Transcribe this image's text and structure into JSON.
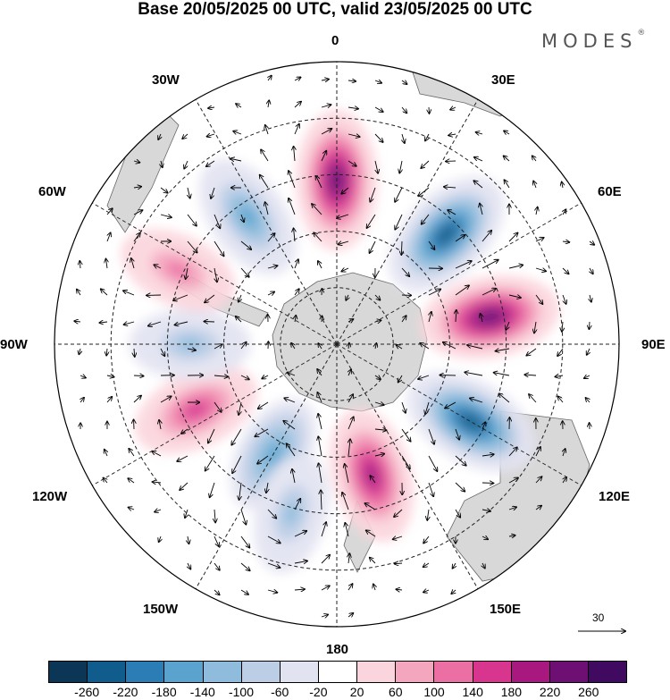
{
  "title": "Base 20/05/2025 00 UTC, valid 23/05/2025 00 UTC",
  "brand": "MODES",
  "brand_mark": "®",
  "longitude_labels": [
    "0",
    "30E",
    "60E",
    "90E",
    "120E",
    "150E",
    "180",
    "150W",
    "120W",
    "90W",
    "60W",
    "30W"
  ],
  "vector_reference": {
    "value": "30"
  },
  "colorbar": {
    "colors": [
      "#0b3656",
      "#105c8c",
      "#2a7db5",
      "#5aa3cf",
      "#8fbcdc",
      "#bccde6",
      "#e2e3f1",
      "#ffffff",
      "#fbd5dd",
      "#f5a6bf",
      "#ec6fa3",
      "#d8358f",
      "#a8187f",
      "#6d0f73",
      "#3f0a5f"
    ],
    "tick_labels": [
      "-260",
      "-220",
      "-180",
      "-140",
      "-100",
      "-60",
      "-20",
      "20",
      "60",
      "100",
      "140",
      "180",
      "220",
      "260"
    ]
  },
  "anomaly_centers": [
    {
      "sign": "positive",
      "value": 230,
      "near": "0"
    },
    {
      "sign": "negative",
      "value": -250,
      "near": "45E"
    },
    {
      "sign": "positive",
      "value": 230,
      "near": "80E"
    },
    {
      "sign": "negative",
      "value": -250,
      "near": "120E"
    },
    {
      "sign": "positive",
      "value": 190,
      "near": "165E"
    },
    {
      "sign": "negative",
      "value": -140,
      "near": "150W"
    },
    {
      "sign": "negative",
      "value": -130,
      "near": "165W"
    },
    {
      "sign": "positive",
      "value": 150,
      "near": "115W"
    },
    {
      "sign": "negative",
      "value": -130,
      "near": "90W"
    },
    {
      "sign": "positive",
      "value": 110,
      "near": "65W"
    },
    {
      "sign": "negative",
      "value": -170,
      "near": "35W"
    }
  ],
  "colors": {
    "land": "#d8d8d8",
    "coast": "#555555",
    "grid": "#222222"
  }
}
